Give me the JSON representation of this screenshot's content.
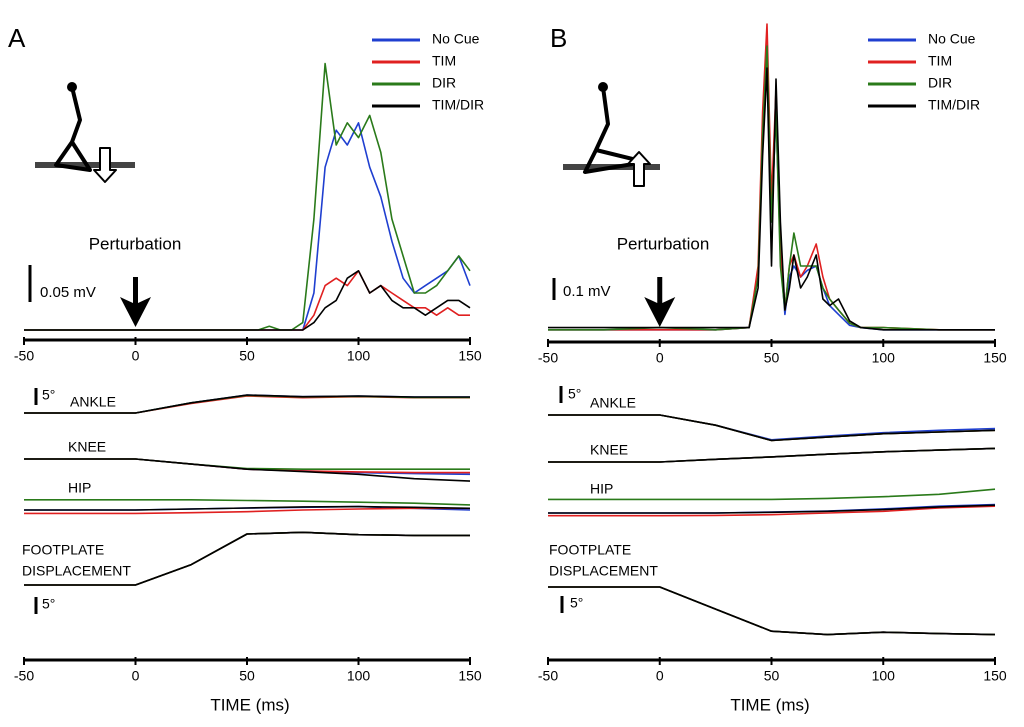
{
  "chart_data": [
    {
      "type": "line",
      "panel": "A",
      "xlim": [
        -50,
        150
      ],
      "xticks": [
        -50,
        0,
        50,
        100,
        150
      ],
      "xlabel": "TIME (ms)",
      "annotation": {
        "text": "Perturbation",
        "x": 0
      },
      "emg": {
        "scale_bar": {
          "value": 0.05,
          "label": "0.05 mV"
        },
        "x": [
          -50,
          -45,
          -40,
          -35,
          -30,
          -25,
          -20,
          -15,
          -10,
          -5,
          0,
          5,
          10,
          15,
          20,
          25,
          30,
          35,
          40,
          45,
          50,
          55,
          60,
          65,
          70,
          75,
          80,
          85,
          90,
          95,
          100,
          105,
          110,
          115,
          120,
          125,
          130,
          135,
          140,
          145,
          150
        ],
        "series": [
          {
            "name": "No Cue",
            "color": "#1f3fd0",
            "values": [
              0,
              0,
              0,
              0,
              0,
              0,
              0,
              0,
              0,
              0,
              0,
              0,
              0,
              0,
              0,
              0,
              0,
              0,
              0,
              0,
              0,
              0,
              0,
              0,
              0,
              0,
              0.05,
              0.22,
              0.27,
              0.25,
              0.28,
              0.22,
              0.18,
              0.12,
              0.07,
              0.05,
              0.06,
              0.07,
              0.08,
              0.1,
              0.06
            ]
          },
          {
            "name": "TIM",
            "color": "#e02020",
            "values": [
              0,
              0,
              0,
              0,
              0,
              0,
              0,
              0,
              0,
              0,
              0,
              0,
              0,
              0,
              0,
              0,
              0,
              0,
              0,
              0,
              0,
              0,
              0,
              0,
              0,
              0,
              0.02,
              0.06,
              0.07,
              0.06,
              0.08,
              0.05,
              0.06,
              0.05,
              0.04,
              0.03,
              0.03,
              0.02,
              0.03,
              0.02,
              0.02
            ]
          },
          {
            "name": "DIR",
            "color": "#2a7a1a",
            "values": [
              0,
              0,
              0,
              0,
              0,
              0,
              0,
              0,
              0,
              0,
              0,
              0,
              0,
              0,
              0,
              0,
              0,
              0,
              0,
              0,
              0,
              0,
              0.005,
              0,
              0,
              0.01,
              0.15,
              0.36,
              0.25,
              0.28,
              0.26,
              0.29,
              0.24,
              0.15,
              0.1,
              0.05,
              0.05,
              0.06,
              0.08,
              0.1,
              0.08
            ]
          },
          {
            "name": "TIM/DIR",
            "color": "#000000",
            "values": [
              0,
              0,
              0,
              0,
              0,
              0,
              0,
              0,
              0,
              0,
              0,
              0,
              0,
              0,
              0,
              0,
              0,
              0,
              0,
              0,
              0,
              0,
              0,
              0,
              0,
              0,
              0.01,
              0.03,
              0.04,
              0.07,
              0.08,
              0.05,
              0.06,
              0.04,
              0.03,
              0.03,
              0.02,
              0.03,
              0.04,
              0.04,
              0.03
            ]
          }
        ]
      },
      "kinematics": {
        "scale_bar": {
          "value": 5,
          "label": "5°"
        },
        "x": [
          -50,
          -25,
          0,
          25,
          50,
          75,
          100,
          125,
          150
        ],
        "traces": [
          {
            "label": [
              "ANKLE"
            ],
            "series": [
              {
                "color": "#1f3fd0",
                "values": [
                  0,
                  0,
                  0,
                  3,
                  5.3,
                  4.8,
                  5,
                  4.7,
                  4.7
                ]
              },
              {
                "color": "#e02020",
                "values": [
                  0,
                  0,
                  0,
                  2.8,
                  5,
                  4.5,
                  4.8,
                  4.5,
                  4.5
                ]
              },
              {
                "color": "#2a7a1a",
                "values": [
                  0,
                  0,
                  0,
                  3,
                  5.2,
                  4.7,
                  4.9,
                  4.6,
                  4.6
                ]
              },
              {
                "color": "#000000",
                "values": [
                  0,
                  0,
                  0,
                  3,
                  5.3,
                  4.8,
                  5,
                  4.7,
                  4.7
                ]
              }
            ]
          },
          {
            "label": [
              "KNEE"
            ],
            "series": [
              {
                "color": "#1f3fd0",
                "values": [
                  0,
                  0,
                  0,
                  -1.5,
                  -3,
                  -3.5,
                  -4,
                  -4.3,
                  -4.5
                ]
              },
              {
                "color": "#e02020",
                "values": [
                  0,
                  0,
                  0,
                  -1.5,
                  -3,
                  -3.5,
                  -3.8,
                  -4,
                  -4
                ]
              },
              {
                "color": "#2a7a1a",
                "values": [
                  0,
                  0,
                  0,
                  -1.5,
                  -2.8,
                  -3,
                  -3,
                  -3,
                  -3
                ]
              },
              {
                "color": "#000000",
                "values": [
                  0,
                  0,
                  0,
                  -1.5,
                  -3,
                  -3.7,
                  -4.5,
                  -5.8,
                  -6.5
                ]
              }
            ]
          },
          {
            "label": [
              "HIP"
            ],
            "series": [
              {
                "color": "#1f3fd0",
                "values": [
                  0,
                  0,
                  0,
                  0.3,
                  0.6,
                  0.8,
                  1,
                  0.5,
                  0
                ]
              },
              {
                "color": "#e02020",
                "values": [
                  -1,
                  -1,
                  -1,
                  -0.8,
                  -0.5,
                  0,
                  0.3,
                  0.5,
                  0.5
                ]
              },
              {
                "color": "#2a7a1a",
                "values": [
                  3,
                  3,
                  3,
                  3,
                  2.8,
                  2.6,
                  2.3,
                  2,
                  1.5
                ]
              },
              {
                "color": "#000000",
                "values": [
                  0,
                  0,
                  0,
                  0.3,
                  0.6,
                  0.9,
                  1,
                  0.8,
                  0.5
                ]
              }
            ]
          },
          {
            "label": [
              "FOOTPLATE",
              "DISPLACEMENT"
            ],
            "series": [
              {
                "color": "#1f3fd0",
                "values": [
                  0,
                  0,
                  0,
                  6,
                  15,
                  15.5,
                  14.8,
                  14.6,
                  14.6
                ]
              },
              {
                "color": "#e02020",
                "values": [
                  0,
                  0,
                  0,
                  6,
                  15,
                  15.5,
                  14.8,
                  14.6,
                  14.6
                ]
              },
              {
                "color": "#2a7a1a",
                "values": [
                  0,
                  0,
                  0,
                  6,
                  15,
                  15.5,
                  14.8,
                  14.6,
                  14.6
                ]
              },
              {
                "color": "#000000",
                "values": [
                  0,
                  0,
                  0,
                  6,
                  15,
                  15.5,
                  14.8,
                  14.6,
                  14.6
                ]
              }
            ]
          }
        ]
      }
    },
    {
      "type": "line",
      "panel": "B",
      "xlim": [
        -50,
        150
      ],
      "xticks": [
        -50,
        0,
        50,
        100,
        150
      ],
      "xlabel": "TIME (ms)",
      "annotation": {
        "text": "Perturbation",
        "x": 0
      },
      "emg": {
        "scale_bar": {
          "value": 0.1,
          "label": "0.1 mV"
        },
        "x": [
          -50,
          -25,
          0,
          25,
          40,
          44,
          46,
          48,
          50,
          52,
          54,
          56,
          58,
          60,
          63,
          66,
          70,
          73,
          76,
          80,
          85,
          90,
          100,
          125,
          150
        ],
        "series": [
          {
            "name": "No Cue",
            "color": "#1f3fd0",
            "values": [
              0.01,
              0.01,
              0.01,
              0.01,
              0.02,
              0.25,
              0.9,
              1.35,
              0.5,
              1.0,
              0.35,
              0.08,
              0.25,
              0.3,
              0.25,
              0.28,
              0.3,
              0.2,
              0.12,
              0.08,
              0.03,
              0.02,
              0.01,
              0.01,
              0.01
            ]
          },
          {
            "name": "TIM",
            "color": "#e02020",
            "values": [
              0.01,
              0.01,
              0.01,
              0.01,
              0.02,
              0.3,
              1.0,
              1.4,
              0.6,
              1.1,
              0.4,
              0.1,
              0.3,
              0.35,
              0.25,
              0.3,
              0.4,
              0.25,
              0.15,
              0.1,
              0.04,
              0.02,
              0.02,
              0.01,
              0.01
            ]
          },
          {
            "name": "DIR",
            "color": "#2a7a1a",
            "values": [
              0.01,
              0.01,
              0.02,
              0.01,
              0.02,
              0.25,
              0.9,
              1.3,
              0.5,
              1.0,
              0.3,
              0.1,
              0.3,
              0.45,
              0.3,
              0.3,
              0.3,
              0.2,
              0.15,
              0.1,
              0.04,
              0.02,
              0.02,
              0.01,
              0.01
            ]
          },
          {
            "name": "TIM/DIR",
            "color": "#000000",
            "values": [
              0.02,
              0.02,
              0.02,
              0.02,
              0.02,
              0.2,
              0.8,
              1.2,
              0.3,
              1.15,
              0.5,
              0.1,
              0.2,
              0.35,
              0.2,
              0.25,
              0.35,
              0.15,
              0.12,
              0.15,
              0.05,
              0.02,
              0.01,
              0.01,
              0.01
            ]
          }
        ]
      },
      "kinematics": {
        "scale_bar": {
          "value": 5,
          "label": "5°"
        },
        "x": [
          -50,
          -25,
          0,
          25,
          50,
          75,
          100,
          125,
          150
        ],
        "traces": [
          {
            "label": [
              "ANKLE"
            ],
            "series": [
              {
                "color": "#1f3fd0",
                "values": [
                  0,
                  0,
                  0,
                  -3,
                  -7.3,
                  -6.2,
                  -5.2,
                  -4.5,
                  -4
                ]
              },
              {
                "color": "#e02020",
                "values": [
                  0,
                  0,
                  0,
                  -3,
                  -7.5,
                  -6.5,
                  -5.5,
                  -5,
                  -4.5
                ]
              },
              {
                "color": "#2a7a1a",
                "values": [
                  0,
                  0,
                  0,
                  -3,
                  -7.5,
                  -6.5,
                  -5.5,
                  -5,
                  -4.5
                ]
              },
              {
                "color": "#000000",
                "values": [
                  0,
                  0,
                  0,
                  -3,
                  -7.5,
                  -6.5,
                  -5.5,
                  -5,
                  -4.5
                ]
              }
            ]
          },
          {
            "label": [
              "KNEE"
            ],
            "series": [
              {
                "color": "#1f3fd0",
                "values": [
                  0,
                  0,
                  0,
                  0.8,
                  1.5,
                  2.3,
                  3,
                  3.5,
                  4
                ]
              },
              {
                "color": "#e02020",
                "values": [
                  0,
                  0,
                  0,
                  0.8,
                  1.5,
                  2.3,
                  3,
                  3.5,
                  4
                ]
              },
              {
                "color": "#2a7a1a",
                "values": [
                  0,
                  0,
                  0,
                  0.8,
                  1.5,
                  2.3,
                  3,
                  3.5,
                  4
                ]
              },
              {
                "color": "#000000",
                "values": [
                  0,
                  0,
                  0,
                  0.8,
                  1.5,
                  2.3,
                  3,
                  3.5,
                  4
                ]
              }
            ]
          },
          {
            "label": [
              "HIP"
            ],
            "series": [
              {
                "color": "#1f3fd0",
                "values": [
                  0,
                  0,
                  0,
                  0,
                  0.3,
                  0.6,
                  1.2,
                  2,
                  2.5
                ]
              },
              {
                "color": "#e02020",
                "values": [
                  -0.8,
                  -0.8,
                  -0.8,
                  -0.7,
                  -0.5,
                  0,
                  0.5,
                  1.5,
                  2
                ]
              },
              {
                "color": "#2a7a1a",
                "values": [
                  4,
                  4,
                  4,
                  4,
                  4,
                  4.3,
                  4.8,
                  5.5,
                  7
                ]
              },
              {
                "color": "#000000",
                "values": [
                  0,
                  0,
                  0,
                  0,
                  0.2,
                  0.5,
                  1,
                  1.8,
                  2.3
                ]
              }
            ]
          },
          {
            "label": [
              "FOOTPLATE",
              "DISPLACEMENT"
            ],
            "series": [
              {
                "color": "#1f3fd0",
                "values": [
                  0,
                  0,
                  0,
                  -6.5,
                  -13,
                  -14,
                  -13.3,
                  -13.7,
                  -14
                ]
              },
              {
                "color": "#e02020",
                "values": [
                  0,
                  0,
                  0,
                  -6.5,
                  -13,
                  -14,
                  -13.3,
                  -13.7,
                  -14
                ]
              },
              {
                "color": "#2a7a1a",
                "values": [
                  0,
                  0,
                  0,
                  -6.5,
                  -13,
                  -14,
                  -13.3,
                  -13.7,
                  -14
                ]
              },
              {
                "color": "#000000",
                "values": [
                  0,
                  0,
                  0,
                  -6.5,
                  -13,
                  -14,
                  -13.3,
                  -13.7,
                  -14
                ]
              }
            ]
          }
        ]
      }
    }
  ]
}
